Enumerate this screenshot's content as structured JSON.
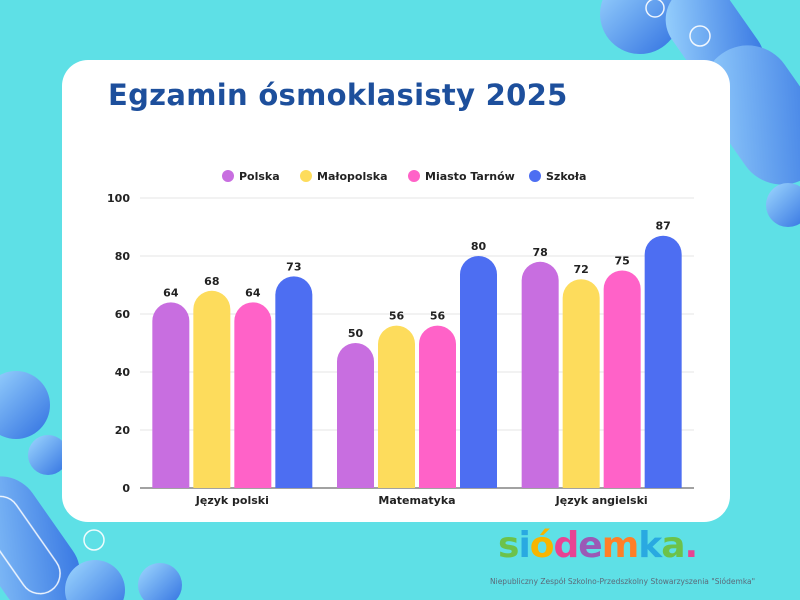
{
  "title": "Egzamin ósmoklasisty 2025",
  "chart_data": {
    "type": "bar",
    "title": "Egzamin ósmoklasisty 2025",
    "categories": [
      "Język polski",
      "Matematyka",
      "Język angielski"
    ],
    "series": [
      {
        "name": "Polska",
        "color": "#c86ee0",
        "values": [
          64,
          50,
          78
        ]
      },
      {
        "name": "Małopolska",
        "color": "#fddc5c",
        "values": [
          68,
          56,
          72
        ]
      },
      {
        "name": "Miasto Tarnów",
        "color": "#ff62c8",
        "values": [
          64,
          56,
          75
        ]
      },
      {
        "name": "Szkoła",
        "color": "#4d6ef2",
        "values": [
          73,
          80,
          87
        ]
      }
    ],
    "ylim": [
      0,
      100
    ],
    "yticks": [
      0,
      20,
      40,
      60,
      80,
      100
    ],
    "grid": true,
    "legend": "top-center"
  },
  "logo": {
    "text": "siódemka.",
    "subtitle": "Niepubliczny Zespół Szkolno-Przedszkolny Stowarzyszenia \"Siódemka\""
  }
}
